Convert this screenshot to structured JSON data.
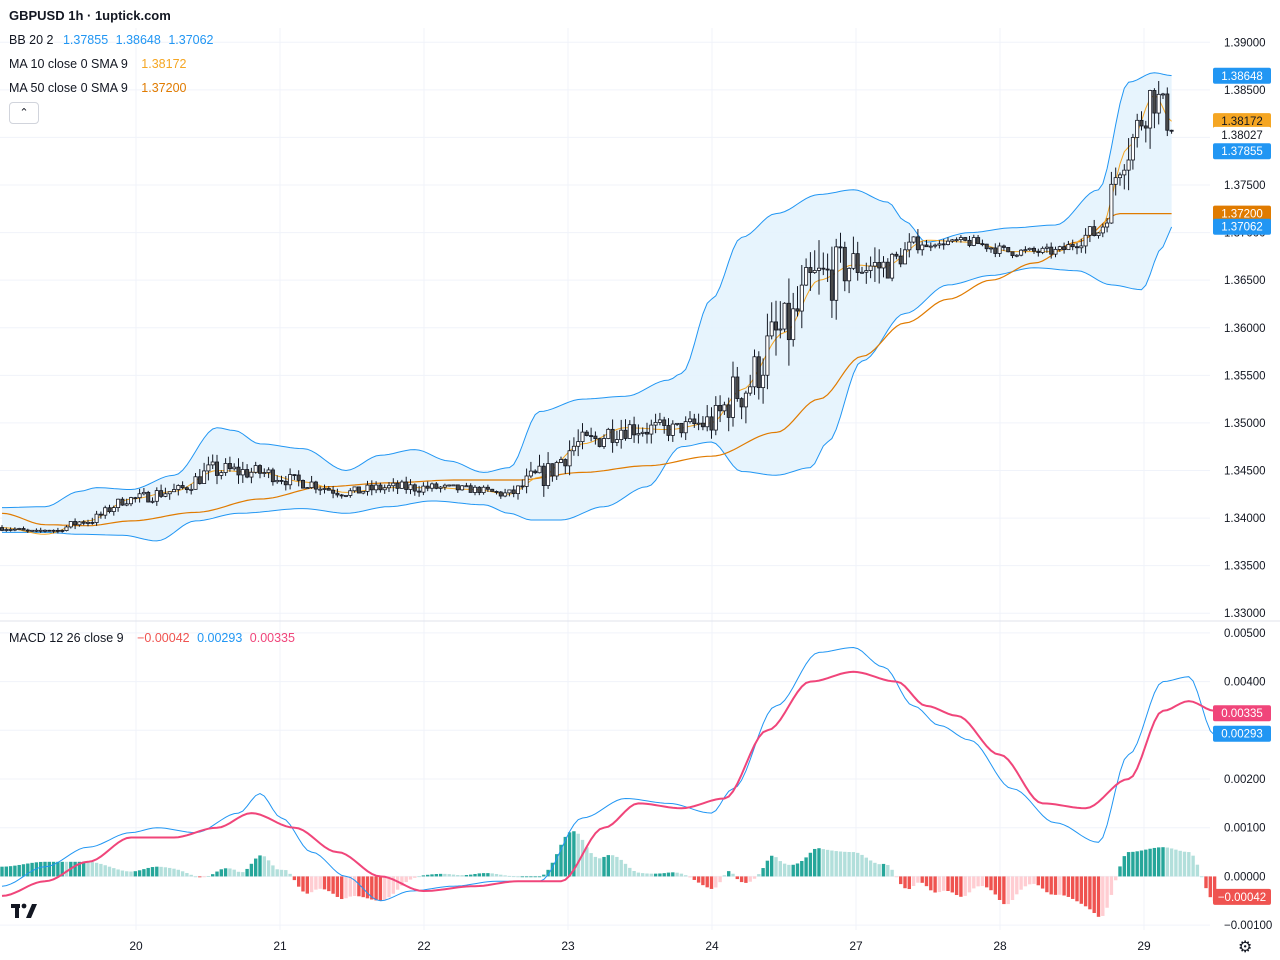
{
  "header": {
    "title": "GBPUSD 1h · 1uptick.com"
  },
  "legend": {
    "bb": {
      "label": "BB 20 2",
      "basis": "1.37855",
      "upper": "1.38648",
      "lower": "1.37062"
    },
    "ma10": {
      "label": "MA 10 close 0 SMA 9",
      "value": "1.38172"
    },
    "ma50": {
      "label": "MA 50 close 0 SMA 9",
      "value": "1.37200"
    },
    "macd": {
      "label": "MACD 12 26 close 9",
      "hist": "−0.00042",
      "macd": "0.00293",
      "signal": "0.00335"
    },
    "collapse_icon": "chevron-up-icon"
  },
  "colors": {
    "up": "#ffffff",
    "down": "#4a4a4a",
    "wick": "#131722",
    "bb_line": "#2196f3",
    "bb_fill": "#e3f2fd",
    "ma10": "#f5a623",
    "ma50": "#e07b00",
    "macd": "#2196f3",
    "signal": "#f0457a",
    "hist_up_strong": "#26a69a",
    "hist_up_weak": "#b2dfdb",
    "hist_down_strong": "#ef5350",
    "hist_down_weak": "#ffcdd2"
  },
  "chart_data": {
    "type": "candlestick",
    "x_ticks": [
      "20",
      "21",
      "22",
      "23",
      "24",
      "27",
      "28",
      "29"
    ],
    "price_ticks": [
      "1.39000",
      "1.38500",
      "1.38000",
      "1.37500",
      "1.37000",
      "1.36500",
      "1.36000",
      "1.35500",
      "1.35000",
      "1.34500",
      "1.34000",
      "1.33500",
      "1.33000"
    ],
    "price_ylim": [
      1.3295,
      1.3915
    ],
    "price_labels": [
      {
        "name": "bb-upper",
        "value": 1.38648,
        "text": "1.38648",
        "bg": "#2196f3",
        "fg": "#ffffff"
      },
      {
        "name": "ma10",
        "value": 1.38172,
        "text": "1.38172",
        "bg": "#f5a623",
        "fg": "#131722"
      },
      {
        "name": "last",
        "value": 1.38027,
        "text": "1.38027",
        "bg": "#ffffff",
        "fg": "#131722"
      },
      {
        "name": "bb-basis",
        "value": 1.37855,
        "text": "1.37855",
        "bg": "#2196f3",
        "fg": "#ffffff"
      },
      {
        "name": "ma50",
        "value": 1.372,
        "text": "1.37200",
        "bg": "#e07b00",
        "fg": "#ffffff"
      },
      {
        "name": "bb-lower",
        "value": 1.37062,
        "text": "1.37062",
        "bg": "#2196f3",
        "fg": "#ffffff"
      }
    ],
    "macd_ticks": [
      "0.00500",
      "0.00400",
      "0.00300",
      "0.00200",
      "0.00100",
      "0.00000",
      "−0.00100"
    ],
    "macd_ylim": [
      -0.0011,
      0.0051
    ],
    "macd_labels": [
      {
        "name": "signal",
        "value": 0.00335,
        "text": "0.00335",
        "bg": "#f0457a",
        "fg": "#ffffff"
      },
      {
        "name": "macd",
        "value": 0.00293,
        "text": "0.00293",
        "bg": "#2196f3",
        "fg": "#ffffff"
      },
      {
        "name": "hist",
        "value": -0.00042,
        "text": "−0.00042",
        "bg": "#ef5350",
        "fg": "#ffffff"
      }
    ],
    "bb_upper_anchors": [
      [
        0,
        1.3411
      ],
      [
        10,
        1.3412
      ],
      [
        18,
        1.3428
      ],
      [
        22,
        1.3432
      ],
      [
        30,
        1.343
      ],
      [
        40,
        1.3445
      ],
      [
        50,
        1.3495
      ],
      [
        54,
        1.3492
      ],
      [
        60,
        1.3478
      ],
      [
        70,
        1.3473
      ],
      [
        80,
        1.345
      ],
      [
        88,
        1.3466
      ],
      [
        96,
        1.3472
      ],
      [
        104,
        1.346
      ],
      [
        112,
        1.3448
      ],
      [
        118,
        1.3453
      ],
      [
        125,
        1.3512
      ],
      [
        135,
        1.3525
      ],
      [
        145,
        1.3528
      ],
      [
        155,
        1.3545
      ],
      [
        158,
        1.3552
      ],
      [
        165,
        1.363
      ],
      [
        172,
        1.3695
      ],
      [
        180,
        1.372
      ],
      [
        190,
        1.374
      ],
      [
        198,
        1.3745
      ],
      [
        206,
        1.3732
      ],
      [
        210,
        1.3712
      ],
      [
        215,
        1.369
      ],
      [
        225,
        1.37
      ],
      [
        235,
        1.3705
      ],
      [
        245,
        1.3708
      ],
      [
        255,
        1.3745
      ],
      [
        262,
        1.3858
      ],
      [
        268,
        1.3868
      ],
      [
        272,
        1.3865
      ]
    ],
    "bb_lower_anchors": [
      [
        0,
        1.3385
      ],
      [
        10,
        1.3385
      ],
      [
        18,
        1.3383
      ],
      [
        28,
        1.3382
      ],
      [
        36,
        1.3376
      ],
      [
        45,
        1.3397
      ],
      [
        55,
        1.3405
      ],
      [
        70,
        1.341
      ],
      [
        80,
        1.3405
      ],
      [
        90,
        1.3412
      ],
      [
        100,
        1.3418
      ],
      [
        112,
        1.3414
      ],
      [
        118,
        1.3405
      ],
      [
        123,
        1.3398
      ],
      [
        130,
        1.3398
      ],
      [
        140,
        1.3412
      ],
      [
        150,
        1.3433
      ],
      [
        158,
        1.3475
      ],
      [
        165,
        1.348
      ],
      [
        172,
        1.3449
      ],
      [
        180,
        1.3445
      ],
      [
        188,
        1.3453
      ],
      [
        192,
        1.348
      ],
      [
        200,
        1.3565
      ],
      [
        210,
        1.3615
      ],
      [
        220,
        1.3645
      ],
      [
        230,
        1.3655
      ],
      [
        240,
        1.3663
      ],
      [
        250,
        1.366
      ],
      [
        258,
        1.3645
      ],
      [
        265,
        1.364
      ],
      [
        270,
        1.3685
      ],
      [
        272,
        1.3706
      ]
    ],
    "ma10_anchors": [
      [
        0,
        1.339
      ],
      [
        10,
        1.3383
      ],
      [
        20,
        1.3397
      ],
      [
        30,
        1.342
      ],
      [
        40,
        1.3428
      ],
      [
        50,
        1.345
      ],
      [
        60,
        1.3448
      ],
      [
        70,
        1.3438
      ],
      [
        80,
        1.3427
      ],
      [
        90,
        1.3432
      ],
      [
        100,
        1.3432
      ],
      [
        110,
        1.343
      ],
      [
        118,
        1.3425
      ],
      [
        125,
        1.3443
      ],
      [
        135,
        1.3478
      ],
      [
        145,
        1.3495
      ],
      [
        155,
        1.3493
      ],
      [
        165,
        1.35
      ],
      [
        172,
        1.3535
      ],
      [
        182,
        1.3595
      ],
      [
        190,
        1.365
      ],
      [
        198,
        1.3666
      ],
      [
        205,
        1.3664
      ],
      [
        215,
        1.3692
      ],
      [
        225,
        1.369
      ],
      [
        235,
        1.368
      ],
      [
        245,
        1.368
      ],
      [
        255,
        1.37
      ],
      [
        262,
        1.379
      ],
      [
        268,
        1.3845
      ],
      [
        272,
        1.3817
      ]
    ],
    "ma50_anchors": [
      [
        0,
        1.3405
      ],
      [
        10,
        1.3393
      ],
      [
        20,
        1.3392
      ],
      [
        30,
        1.3397
      ],
      [
        45,
        1.3406
      ],
      [
        60,
        1.342
      ],
      [
        75,
        1.3433
      ],
      [
        90,
        1.3437
      ],
      [
        105,
        1.344
      ],
      [
        120,
        1.344
      ],
      [
        135,
        1.3448
      ],
      [
        150,
        1.3455
      ],
      [
        165,
        1.3465
      ],
      [
        180,
        1.349
      ],
      [
        190,
        1.3525
      ],
      [
        200,
        1.357
      ],
      [
        210,
        1.3605
      ],
      [
        220,
        1.363
      ],
      [
        230,
        1.365
      ],
      [
        240,
        1.3668
      ],
      [
        250,
        1.369
      ],
      [
        260,
        1.372
      ],
      [
        272,
        1.372
      ]
    ],
    "ohlc": "generated-from-envelope",
    "macd_anchors": [
      [
        0,
        -0.0002
      ],
      [
        10,
        0.0002
      ],
      [
        20,
        0.0006
      ],
      [
        30,
        0.0009
      ],
      [
        36,
        0.001
      ],
      [
        45,
        0.0009
      ],
      [
        55,
        0.0013
      ],
      [
        60,
        0.0017
      ],
      [
        65,
        0.0012
      ],
      [
        72,
        0.0005
      ],
      [
        80,
        0.0
      ],
      [
        88,
        -0.0005
      ],
      [
        95,
        -0.0003
      ],
      [
        105,
        -0.0002
      ],
      [
        115,
        -0.0001
      ],
      [
        125,
        -0.0001
      ],
      [
        135,
        0.0012
      ],
      [
        145,
        0.0016
      ],
      [
        155,
        0.0015
      ],
      [
        165,
        0.0013
      ],
      [
        170,
        0.0018
      ],
      [
        180,
        0.0035
      ],
      [
        190,
        0.0046
      ],
      [
        198,
        0.0047
      ],
      [
        205,
        0.0043
      ],
      [
        212,
        0.0035
      ],
      [
        218,
        0.0031
      ],
      [
        225,
        0.0028
      ],
      [
        235,
        0.0018
      ],
      [
        245,
        0.0011
      ],
      [
        255,
        0.0007
      ],
      [
        262,
        0.0025
      ],
      [
        270,
        0.004
      ],
      [
        276,
        0.0041
      ],
      [
        282,
        0.0029
      ]
    ],
    "signal_anchors": [
      [
        0,
        -0.0004
      ],
      [
        10,
        -0.0001
      ],
      [
        20,
        0.0003
      ],
      [
        30,
        0.0008
      ],
      [
        40,
        0.0008
      ],
      [
        50,
        0.001
      ],
      [
        58,
        0.0013
      ],
      [
        68,
        0.001
      ],
      [
        78,
        0.0005
      ],
      [
        88,
        0.0
      ],
      [
        98,
        -0.0003
      ],
      [
        110,
        -0.0002
      ],
      [
        120,
        -0.0001
      ],
      [
        130,
        -0.0001
      ],
      [
        140,
        0.001
      ],
      [
        148,
        0.0015
      ],
      [
        158,
        0.0014
      ],
      [
        168,
        0.0016
      ],
      [
        178,
        0.003
      ],
      [
        188,
        0.004
      ],
      [
        198,
        0.0042
      ],
      [
        208,
        0.004
      ],
      [
        215,
        0.0035
      ],
      [
        222,
        0.0033
      ],
      [
        232,
        0.0025
      ],
      [
        242,
        0.0015
      ],
      [
        252,
        0.0014
      ],
      [
        262,
        0.002
      ],
      [
        270,
        0.0034
      ],
      [
        276,
        0.0036
      ],
      [
        282,
        0.0034
      ]
    ]
  }
}
